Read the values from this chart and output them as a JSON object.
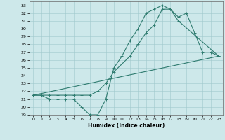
{
  "xlabel": "Humidex (Indice chaleur)",
  "bg_color": "#cde8ea",
  "grid_color": "#a0c8cc",
  "line_color": "#2e7b6f",
  "ylim": [
    19,
    33.5
  ],
  "xlim": [
    -0.5,
    23.5
  ],
  "yticks": [
    19,
    20,
    21,
    22,
    23,
    24,
    25,
    26,
    27,
    28,
    29,
    30,
    31,
    32,
    33
  ],
  "xticks": [
    0,
    1,
    2,
    3,
    4,
    5,
    6,
    7,
    8,
    9,
    10,
    11,
    12,
    13,
    14,
    15,
    16,
    17,
    18,
    19,
    20,
    21,
    22,
    23
  ],
  "line1_x": [
    0,
    1,
    2,
    3,
    4,
    5,
    6,
    7,
    8,
    9,
    10,
    11,
    12,
    13,
    14,
    15,
    16,
    17,
    18,
    19,
    20,
    21,
    22,
    23
  ],
  "line1_y": [
    21.5,
    21.5,
    21.0,
    21.0,
    21.0,
    21.0,
    20.0,
    19.0,
    19.0,
    21.0,
    25.0,
    26.5,
    28.5,
    30.0,
    32.0,
    32.5,
    33.0,
    32.5,
    31.5,
    32.0,
    29.5,
    27.0,
    27.0,
    26.5
  ],
  "line2_x": [
    0,
    23
  ],
  "line2_y": [
    21.5,
    26.5
  ],
  "line3_x": [
    0,
    1,
    2,
    3,
    4,
    5,
    6,
    7,
    8,
    9,
    10,
    11,
    12,
    13,
    14,
    15,
    16,
    17,
    18,
    23
  ],
  "line3_y": [
    21.5,
    21.5,
    21.5,
    21.5,
    21.5,
    21.5,
    21.5,
    21.5,
    22.0,
    23.0,
    24.5,
    25.5,
    26.5,
    28.0,
    29.5,
    30.5,
    32.5,
    32.5,
    31.0,
    26.5
  ]
}
